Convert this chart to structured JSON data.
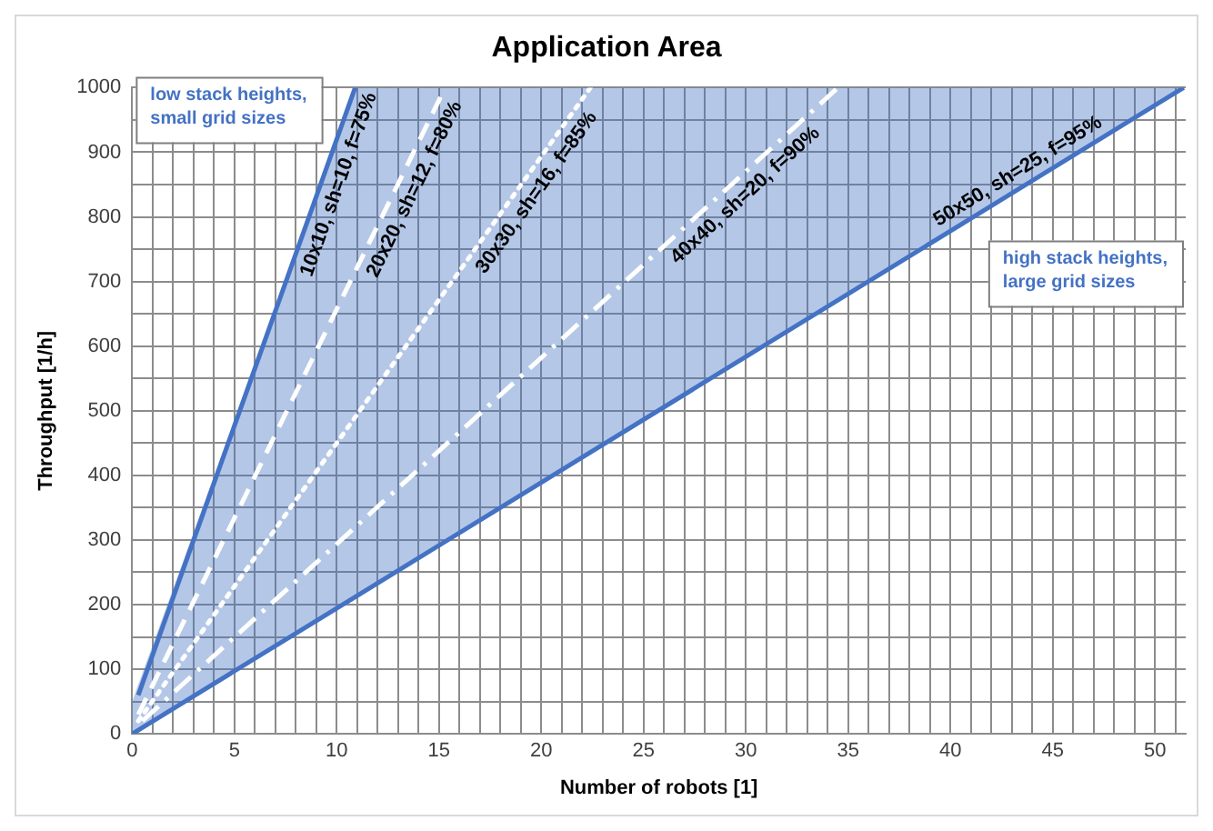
{
  "chart_data": {
    "type": "line",
    "title": "Application Area",
    "xlabel": "Number of robots [1]",
    "ylabel": "Throughput [1/h]",
    "xlim": [
      0,
      51.5
    ],
    "ylim": [
      0,
      1000
    ],
    "xticks": [
      0,
      {
        "value": 1,
        "label": null
      },
      {
        "value": 2,
        "label": null
      },
      {
        "value": 3,
        "label": null
      },
      {
        "value": 4,
        "label": null
      },
      5,
      {
        "value": 6,
        "label": null
      },
      {
        "value": 7,
        "label": null
      },
      {
        "value": 8,
        "label": null
      },
      {
        "value": 9,
        "label": null
      },
      10,
      {
        "value": 11,
        "label": null
      },
      {
        "value": 12,
        "label": null
      },
      {
        "value": 13,
        "label": null
      },
      {
        "value": 14,
        "label": null
      },
      15,
      {
        "value": 16,
        "label": null
      },
      {
        "value": 17,
        "label": null
      },
      {
        "value": 18,
        "label": null
      },
      {
        "value": 19,
        "label": null
      },
      20,
      {
        "value": 21,
        "label": null
      },
      {
        "value": 22,
        "label": null
      },
      {
        "value": 23,
        "label": null
      },
      {
        "value": 24,
        "label": null
      },
      25,
      {
        "value": 26,
        "label": null
      },
      {
        "value": 27,
        "label": null
      },
      {
        "value": 28,
        "label": null
      },
      {
        "value": 29,
        "label": null
      },
      30,
      {
        "value": 31,
        "label": null
      },
      {
        "value": 32,
        "label": null
      },
      {
        "value": 33,
        "label": null
      },
      {
        "value": 34,
        "label": null
      },
      35,
      {
        "value": 36,
        "label": null
      },
      {
        "value": 37,
        "label": null
      },
      {
        "value": 38,
        "label": null
      },
      {
        "value": 39,
        "label": null
      },
      40,
      {
        "value": 41,
        "label": null
      },
      {
        "value": 42,
        "label": null
      },
      {
        "value": 43,
        "label": null
      },
      {
        "value": 44,
        "label": null
      },
      45,
      {
        "value": 46,
        "label": null
      },
      {
        "value": 47,
        "label": null
      },
      {
        "value": 48,
        "label": null
      },
      {
        "value": 49,
        "label": null
      },
      50,
      {
        "value": 51,
        "label": null
      }
    ],
    "yticks": [
      0,
      {
        "value": 50,
        "label": null
      },
      100,
      {
        "value": 150,
        "label": null
      },
      200,
      {
        "value": 250,
        "label": null
      },
      300,
      {
        "value": 350,
        "label": null
      },
      400,
      {
        "value": 450,
        "label": null
      },
      500,
      {
        "value": 550,
        "label": null
      },
      600,
      {
        "value": 650,
        "label": null
      },
      700,
      {
        "value": 750,
        "label": null
      },
      800,
      {
        "value": 850,
        "label": null
      },
      900,
      {
        "value": 950,
        "label": null
      },
      1000
    ],
    "grid": true,
    "legend": false,
    "marker": "none",
    "series": [
      {
        "name": "10x10, sh=10, f=75%",
        "color": "#4472c4",
        "line_style": "solid",
        "x": [
          0.3,
          10.9
        ],
        "values": [
          60,
          1000
        ]
      },
      {
        "name": "20x20, sh=12, f=80%",
        "color": "#ffffff",
        "line_style": "dashed",
        "x": [
          0.3,
          15.3
        ],
        "values": [
          30,
          1000
        ]
      },
      {
        "name": "30x30, sh=16, f=85%",
        "color": "#ffffff",
        "line_style": "dotted",
        "x": [
          0.3,
          22.4
        ],
        "values": [
          20,
          1000
        ]
      },
      {
        "name": "40x40, sh=20, f=90%",
        "color": "#ffffff",
        "line_style": "dashdot",
        "x": [
          0.5,
          34.5
        ],
        "values": [
          20,
          1000
        ]
      },
      {
        "name": "50x50, sh=25, f=95%",
        "color": "#4472c4",
        "line_style": "solid",
        "x": [
          0,
          10.9,
          51.4
        ],
        "values": [
          0,
          212,
          1000
        ],
        "lower": [
          0,
          212,
          1000
        ],
        "upper": [
          50,
          1000,
          1000
        ]
      }
    ],
    "annotations": [
      "low stack heights, small grid sizes",
      "high stack heights, large grid sizes"
    ]
  }
}
